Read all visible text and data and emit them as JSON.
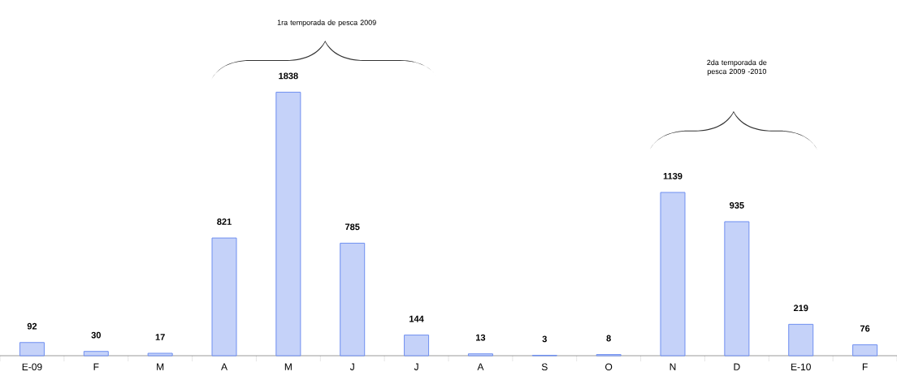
{
  "chart_data": {
    "type": "bar",
    "categories": [
      "E-09",
      "F",
      "M",
      "A",
      "M",
      "J",
      "J",
      "A",
      "S",
      "O",
      "N",
      "D",
      "E-10",
      "F"
    ],
    "values": [
      92,
      30,
      17,
      821,
      1838,
      785,
      144,
      13,
      3,
      8,
      1139,
      935,
      219,
      76
    ],
    "color": "#6f8ff0",
    "data_labels": true,
    "grid": false,
    "tick_labels": "x",
    "annotations": [
      "1ra  temporada de pesca 2009",
      "2da  temporada de pesca 2009 -2010"
    ]
  }
}
